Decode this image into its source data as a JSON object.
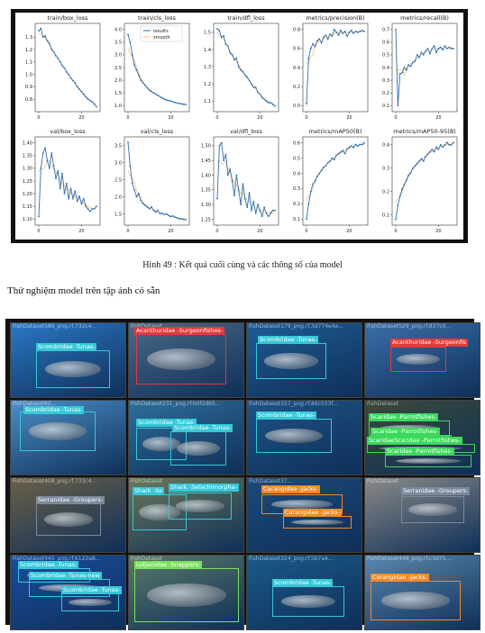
{
  "figure1": {
    "caption": "Hình 49 : Kết quả cuối cùng và các thông số của model",
    "legend": {
      "results": "results",
      "smooth": "smooth"
    },
    "plots": [
      {
        "title": "train/box_loss",
        "yticks": [
          "1.3",
          "1.2",
          "1.1",
          "1.0",
          "0.9",
          "0.8"
        ],
        "xticks": [
          "0",
          "20"
        ],
        "values": [
          1.35,
          1.37,
          1.3,
          1.31,
          1.27,
          1.25,
          1.2,
          1.18,
          1.15,
          1.13,
          1.1,
          1.07,
          1.05,
          1.02,
          1.0,
          0.97,
          0.95,
          0.93,
          0.9,
          0.88,
          0.86,
          0.84,
          0.82,
          0.8,
          0.79,
          0.78,
          0.76,
          0.74
        ]
      },
      {
        "title": "train/cls_loss",
        "yticks": [
          "4.0",
          "3.5",
          "3.0",
          "2.5",
          "2.0",
          "1.5",
          "1.0"
        ],
        "xticks": [
          "0",
          "20"
        ],
        "values": [
          3.8,
          3.5,
          3.0,
          2.6,
          2.4,
          2.2,
          2.0,
          1.9,
          1.8,
          1.7,
          1.6,
          1.55,
          1.5,
          1.45,
          1.4,
          1.35,
          1.3,
          1.25,
          1.22,
          1.2,
          1.18,
          1.15,
          1.12,
          1.1,
          1.08,
          1.07,
          1.05,
          1.04
        ]
      },
      {
        "title": "train/dfl_loss",
        "yticks": [
          "1.5",
          "1.4",
          "1.3",
          "1.2",
          "1.1"
        ],
        "xticks": [
          "0",
          "20"
        ],
        "values": [
          1.52,
          1.51,
          1.47,
          1.48,
          1.43,
          1.42,
          1.38,
          1.37,
          1.34,
          1.35,
          1.3,
          1.28,
          1.27,
          1.25,
          1.24,
          1.22,
          1.2,
          1.18,
          1.18,
          1.15,
          1.14,
          1.12,
          1.11,
          1.1,
          1.09,
          1.09,
          1.08,
          1.07
        ]
      },
      {
        "title": "metrics/precision(B)",
        "yticks": [
          "0.8",
          "0.6",
          "0.4",
          "0.2",
          "0.0"
        ],
        "xticks": [
          "0",
          "20"
        ],
        "values": [
          0.02,
          0.5,
          0.6,
          0.65,
          0.62,
          0.68,
          0.7,
          0.66,
          0.72,
          0.74,
          0.7,
          0.75,
          0.73,
          0.8,
          0.77,
          0.74,
          0.79,
          0.76,
          0.78,
          0.73,
          0.77,
          0.79,
          0.76,
          0.78,
          0.77,
          0.78,
          0.79,
          0.78
        ]
      },
      {
        "title": "metrics/recall(B)",
        "yticks": [
          "0.7",
          "0.6",
          "0.5",
          "0.4",
          "0.3",
          "0.2",
          "0.1"
        ],
        "xticks": [
          "0",
          "20"
        ],
        "values": [
          0.7,
          0.1,
          0.35,
          0.36,
          0.4,
          0.38,
          0.42,
          0.41,
          0.44,
          0.45,
          0.5,
          0.48,
          0.52,
          0.5,
          0.53,
          0.55,
          0.51,
          0.55,
          0.57,
          0.52,
          0.55,
          0.56,
          0.54,
          0.57,
          0.55,
          0.56,
          0.55,
          0.55
        ]
      },
      {
        "title": "val/box_loss",
        "yticks": [
          "1.40",
          "1.35",
          "1.30",
          "1.25",
          "1.20",
          "1.15",
          "1.10"
        ],
        "xticks": [
          "0",
          "20"
        ],
        "values": [
          1.11,
          1.3,
          1.36,
          1.38,
          1.33,
          1.3,
          1.36,
          1.31,
          1.26,
          1.29,
          1.22,
          1.28,
          1.2,
          1.24,
          1.18,
          1.22,
          1.18,
          1.21,
          1.17,
          1.19,
          1.16,
          1.18,
          1.15,
          1.14,
          1.13,
          1.14,
          1.14,
          1.15
        ]
      },
      {
        "title": "val/cls_loss",
        "yticks": [
          "3.5",
          "3.0",
          "2.5",
          "2.0",
          "1.5"
        ],
        "xticks": [
          "0",
          "20"
        ],
        "values": [
          3.6,
          2.9,
          2.4,
          2.2,
          2.0,
          2.1,
          1.9,
          1.8,
          1.75,
          1.7,
          1.65,
          1.7,
          1.6,
          1.55,
          1.6,
          1.5,
          1.52,
          1.48,
          1.5,
          1.45,
          1.42,
          1.44,
          1.4,
          1.38,
          1.36,
          1.35,
          1.34,
          1.33
        ]
      },
      {
        "title": "val/dfl_loss",
        "yticks": [
          "1.50",
          "1.45",
          "1.40",
          "1.35",
          "1.30",
          "1.25"
        ],
        "xticks": [
          "0",
          "20"
        ],
        "values": [
          1.32,
          1.5,
          1.51,
          1.45,
          1.47,
          1.4,
          1.42,
          1.38,
          1.33,
          1.4,
          1.35,
          1.3,
          1.37,
          1.32,
          1.29,
          1.34,
          1.28,
          1.31,
          1.27,
          1.3,
          1.28,
          1.26,
          1.29,
          1.27,
          1.26,
          1.27,
          1.28,
          1.28
        ]
      },
      {
        "title": "metrics/mAP50(B)",
        "yticks": [
          "0.6",
          "0.5",
          "0.4",
          "0.3",
          "0.2",
          "0.1"
        ],
        "xticks": [
          "0",
          "20"
        ],
        "values": [
          0.1,
          0.2,
          0.28,
          0.33,
          0.35,
          0.38,
          0.4,
          0.42,
          0.44,
          0.45,
          0.47,
          0.48,
          0.5,
          0.49,
          0.52,
          0.53,
          0.54,
          0.55,
          0.53,
          0.56,
          0.57,
          0.58,
          0.57,
          0.59,
          0.58,
          0.59,
          0.59,
          0.6
        ]
      },
      {
        "title": "metrics/mAP50-95(B)",
        "yticks": [
          "0.4",
          "0.3",
          "0.2",
          "0.1"
        ],
        "xticks": [
          "0",
          "20"
        ],
        "values": [
          0.08,
          0.14,
          0.18,
          0.21,
          0.23,
          0.25,
          0.27,
          0.28,
          0.3,
          0.31,
          0.32,
          0.33,
          0.34,
          0.33,
          0.35,
          0.36,
          0.37,
          0.38,
          0.37,
          0.39,
          0.38,
          0.4,
          0.39,
          0.4,
          0.41,
          0.4,
          0.4,
          0.41
        ]
      }
    ]
  },
  "section_title": "Thử nghiệm model trên tập ảnh có sẵn",
  "detections": {
    "cells": [
      {
        "file": "FishDataset589_png.rf.732c4...",
        "bg": "#2a78c4",
        "labels": [
          {
            "text": "Scombridae -Tunas-",
            "color": "#35c8d8"
          }
        ]
      },
      {
        "file": "FishDataset",
        "bg": "#4a6a88",
        "labels": [
          {
            "text": "Acanthuridae -Surgeonfishes-",
            "color": "#e8383a"
          }
        ]
      },
      {
        "file": "FishDataset179_png.rf.3d774e4a...",
        "bg": "#1e5c94",
        "labels": [
          {
            "text": "Scombridae -Tunas-",
            "color": "#35c8d8"
          }
        ]
      },
      {
        "file": "FishDataset529_png.rf.837c0...",
        "bg": "#3a6fa8",
        "labels": [
          {
            "text": "Acanthuridae -Surgeonfis",
            "color": "#e8383a"
          }
        ]
      },
      {
        "file": "FishDataset62...",
        "bg": "#4b8fc8",
        "labels": [
          {
            "text": "Scombridae -Tunas-",
            "color": "#35c8d8"
          }
        ]
      },
      {
        "file": "FishDataset231_png.rf.b0f2d65...",
        "bg": "#2e6f9a",
        "labels": [
          {
            "text": "Scombridae -Tunas-",
            "color": "#35c8d8"
          },
          {
            "text": "Scombridae -Tunas-",
            "color": "#35c8d8"
          }
        ]
      },
      {
        "file": "FishDataset157_png.rf.86c033f...",
        "bg": "#1f5388",
        "labels": [
          {
            "text": "Scombridae -Tunas-",
            "color": "#35c8d8"
          }
        ]
      },
      {
        "file": "FishDataset",
        "bg": "#3a4a3a",
        "labels": [
          {
            "text": "Scaridae -Parrotfishes-",
            "color": "#3ad85a"
          },
          {
            "text": "Scaridae -Parrotfishes-",
            "color": "#3ad85a"
          },
          {
            "text": "ScaridaeScaridae -Parrotfishes-",
            "color": "#3ad85a"
          },
          {
            "text": "Scaridae -Parrotfishes-",
            "color": "#3ad85a"
          }
        ]
      },
      {
        "file": "FishDataset408_png.rf.733c4...",
        "bg": "#6a6048",
        "labels": [
          {
            "text": "Serranidae -Groupers-",
            "color": "#7a8a9a"
          }
        ]
      },
      {
        "file": "FishDataset",
        "bg": "#6a7a5a",
        "labels": [
          {
            "text": "Shark -Se",
            "color": "#35c8d8"
          },
          {
            "text": "Shark -Selachimorpha-",
            "color": "#35c8d8"
          }
        ]
      },
      {
        "file": "FishDataset37...",
        "bg": "#1c4a7a",
        "labels": [
          {
            "text": "Carangidae -Jacks-",
            "color": "#f08a2a"
          },
          {
            "text": "Carangidae -Jacks-",
            "color": "#f08a2a"
          }
        ]
      },
      {
        "file": "FishDataset",
        "bg": "#8a8a88",
        "labels": [
          {
            "text": "Serranidae -Groupers-",
            "color": "#7a8a9a"
          }
        ]
      },
      {
        "file": "FishDataset445_png.rf.6122a8...",
        "bg": "#1a4da0",
        "labels": [
          {
            "text": "Scombridae -Tunas-",
            "color": "#35c8d8"
          },
          {
            "text": "Scombridae -Tunas-new",
            "color": "#35c8d8"
          },
          {
            "text": "Scombridae -Tunas-",
            "color": "#35c8d8"
          }
        ]
      },
      {
        "file": "FishDataset",
        "bg": "#5a7a6a",
        "labels": [
          {
            "text": "Lutjanidae -Snappers-",
            "color": "#7ae05a"
          }
        ]
      },
      {
        "file": "FishDataset324_png.rf.5b7a4...",
        "bg": "#1a5a8a",
        "labels": [
          {
            "text": "Scombridae -Tunas-",
            "color": "#35c8d8"
          }
        ]
      },
      {
        "file": "FishDataset448_png.rf.c3d75...",
        "bg": "#5a88b0",
        "labels": [
          {
            "text": "Carangidae -Jacks-",
            "color": "#f08a2a"
          }
        ]
      }
    ]
  }
}
